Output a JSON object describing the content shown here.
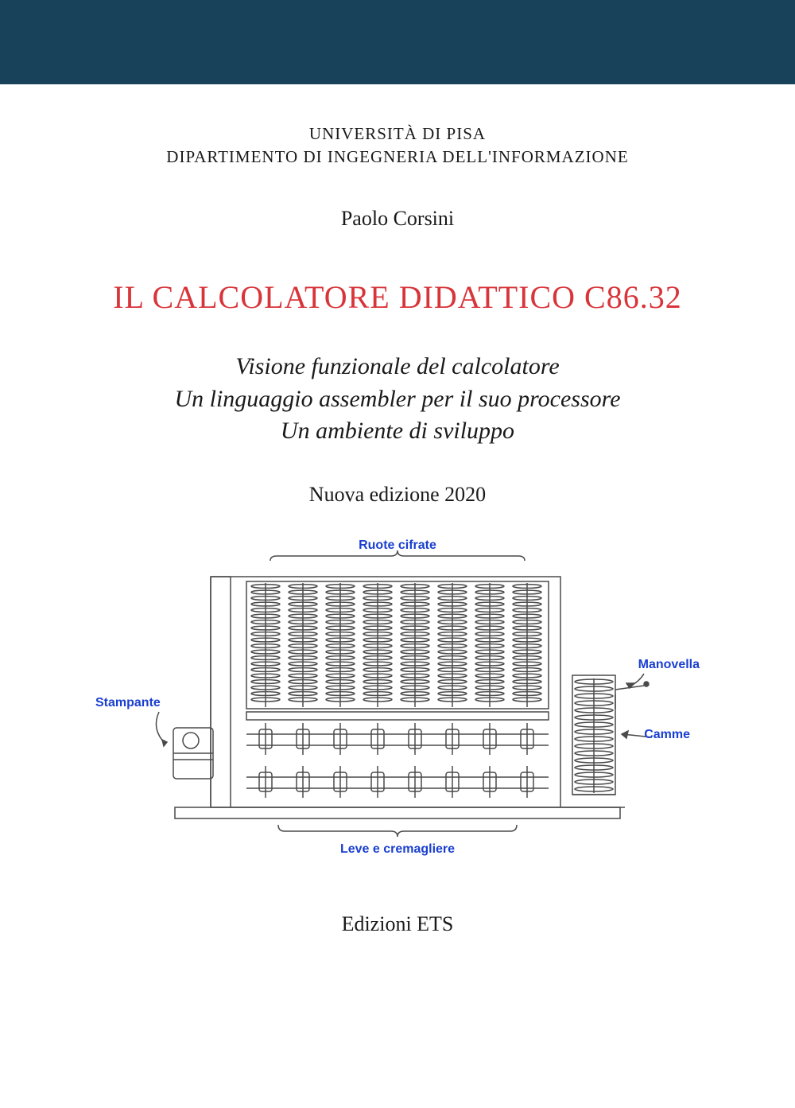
{
  "colors": {
    "band": "#18425a",
    "title": "#d8353a",
    "text": "#1a1a1a",
    "diagram_label": "#1a3fd0",
    "diagram_line": "#4a4a4a",
    "background": "#ffffff"
  },
  "header": {
    "university_line1": "UNIVERSITÀ DI PISA",
    "university_line2": "DIPARTIMENTO DI INGEGNERIA DELL'INFORMAZIONE",
    "author": "Paolo Corsini"
  },
  "title": "IL CALCOLATORE DIDATTICO C86.32",
  "subtitle": {
    "line1": "Visione funzionale del calcolatore",
    "line2": "Un linguaggio assembler per il suo processore",
    "line3": "Un ambiente di sviluppo"
  },
  "edition": "Nuova edizione 2020",
  "diagram": {
    "labels": {
      "top": "Ruote cifrate",
      "left": "Stampante",
      "right_upper": "Manovella",
      "right_lower": "Camme",
      "bottom": "Leve e cremagliere"
    },
    "label_fontsize": 16,
    "label_font": "Arial",
    "label_weight": "bold"
  },
  "publisher": "Edizioni ETS"
}
